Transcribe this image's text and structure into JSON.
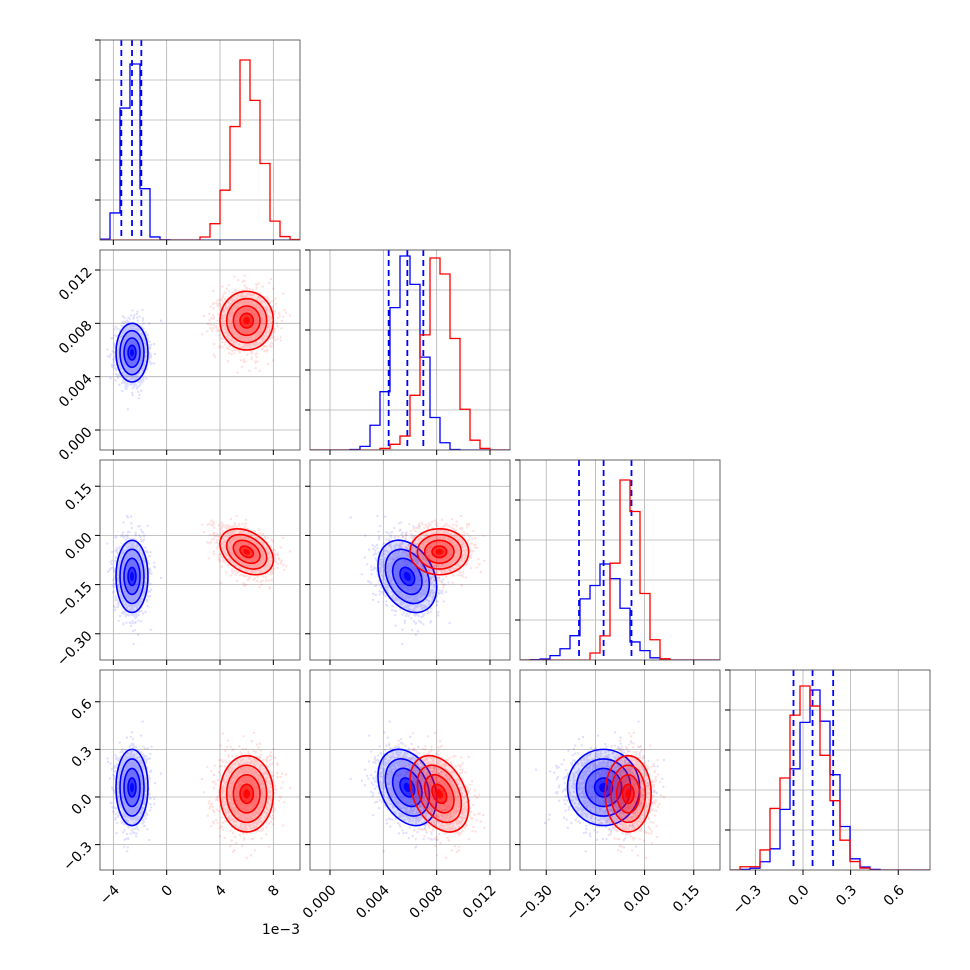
{
  "chart_data": {
    "type": "corner",
    "title": "",
    "parameters": [
      "",
      "",
      "",
      ""
    ],
    "colors": {
      "blue": "#0000ff",
      "red": "#ff0000",
      "grid": "#b0b0b0",
      "axis": "#000000"
    },
    "grid": true,
    "axes": [
      {
        "range": [
          -5.0,
          10.0
        ],
        "ticks": [
          -4,
          0,
          4,
          8
        ],
        "tick_labels": [
          "−4",
          "0",
          "4",
          "8"
        ],
        "offset_label": "1e−3"
      },
      {
        "range": [
          -0.0015,
          0.0135
        ],
        "ticks": [
          0.0,
          0.004,
          0.008,
          0.012
        ],
        "tick_labels": [
          "0.000",
          "0.004",
          "0.008",
          "0.012"
        ]
      },
      {
        "range": [
          -0.38,
          0.23
        ],
        "ticks": [
          -0.3,
          -0.15,
          0.0,
          0.15
        ],
        "tick_labels": [
          "−0.30",
          "−0.15",
          "0.00",
          "0.15"
        ]
      },
      {
        "range": [
          -0.46,
          0.8
        ],
        "ticks": [
          -0.3,
          0.0,
          0.3,
          0.6
        ],
        "tick_labels": [
          "−0.3",
          "0.0",
          "0.3",
          "0.6"
        ]
      }
    ],
    "series": [
      {
        "color": "blue",
        "mean": [
          -2.6,
          0.0058,
          -0.125,
          0.06
        ],
        "sd": [
          0.6,
          0.0011,
          0.055,
          0.12
        ],
        "corr": [
          [
            1,
            0,
            0,
            0
          ],
          [
            0,
            1,
            -0.3,
            -0.3
          ],
          [
            0,
            -0.3,
            1,
            0
          ],
          [
            0,
            -0.3,
            0,
            1
          ]
        ],
        "quantiles": [
          [
            -3.4,
            -2.6,
            -1.9
          ],
          [
            0.0044,
            0.0058,
            0.007
          ],
          [
            -0.2,
            -0.125,
            -0.04
          ],
          [
            -0.06,
            0.06,
            0.19
          ]
        ],
        "hist_peak": [
          0.88,
          0.97,
          0.48,
          0.9
        ]
      },
      {
        "color": "red",
        "mean": [
          6.0,
          0.0082,
          -0.05,
          0.02
        ],
        "sd": [
          1.0,
          0.0011,
          0.035,
          0.12
        ],
        "corr": [
          [
            1,
            0,
            -0.35,
            0
          ],
          [
            0,
            1,
            0,
            -0.35
          ],
          [
            -0.35,
            0,
            1,
            0
          ],
          [
            0,
            -0.35,
            0,
            1
          ]
        ],
        "hist_peak": [
          0.9,
          0.96,
          0.9,
          0.92
        ]
      }
    ]
  }
}
